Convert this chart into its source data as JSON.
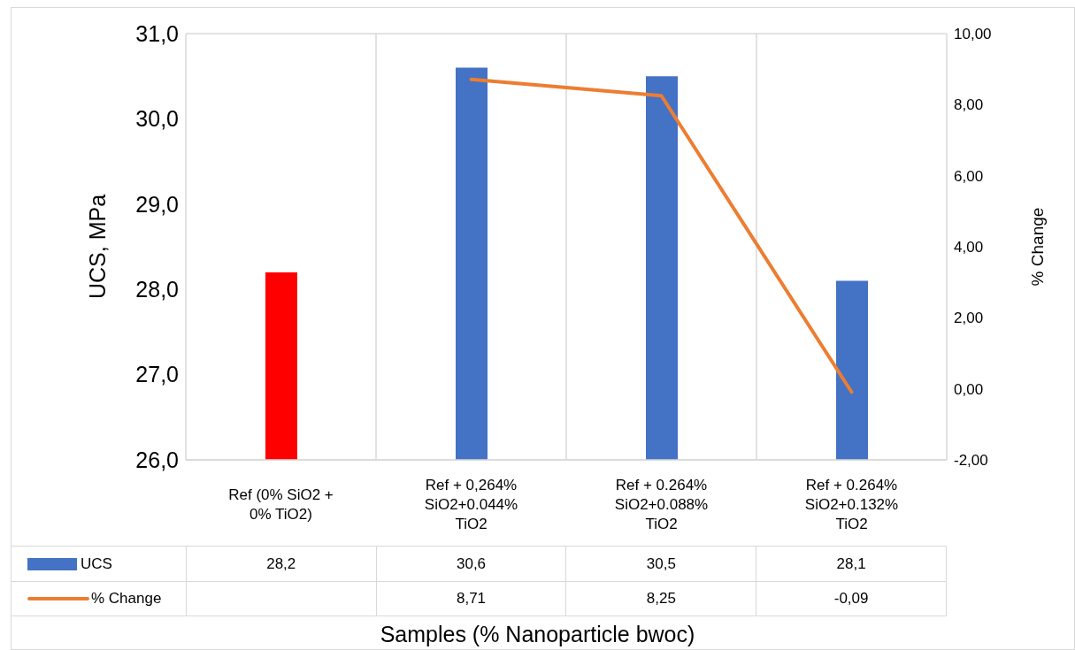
{
  "chart_data": {
    "type": "bar",
    "xlabel": "Samples (% Nanoparticle bwoc)",
    "ylabel": "UCS, MPa",
    "y2label": "% Change",
    "categories": [
      "Ref (0% SiO2 + 0% TiO2)",
      "Ref + 0,264% SiO2+0.044% TiO2",
      "Ref + 0.264% SiO2+0.088% TiO2",
      "Ref + 0.264% SiO2+0.132% TiO2"
    ],
    "series": [
      {
        "name": "UCS",
        "color": "#4472c4",
        "colors": [
          "#ff0000",
          "#4472c4",
          "#4472c4",
          "#4472c4"
        ],
        "values": [
          28.2,
          30.6,
          30.5,
          28.1
        ],
        "value_labels": [
          "28,2",
          "30,6",
          "30,5",
          "28,1"
        ]
      },
      {
        "name": "% Change",
        "type": "line",
        "axis": "y2",
        "color": "#ed7d31",
        "values": [
          null,
          8.71,
          8.25,
          -0.09
        ],
        "value_labels": [
          null,
          "8,71",
          "8,25",
          "-0,09"
        ]
      }
    ],
    "ylim": [
      26,
      31
    ],
    "yticks": [
      {
        "value": 26,
        "label": "26,0"
      },
      {
        "value": 27,
        "label": "27,0"
      },
      {
        "value": 28,
        "label": "28,0"
      },
      {
        "value": 29,
        "label": "29,0"
      },
      {
        "value": 30,
        "label": "30,0"
      },
      {
        "value": 31,
        "label": "31,0"
      }
    ],
    "y2lim": [
      -2,
      10
    ],
    "y2ticks": [
      {
        "value": -2,
        "label": "-2,00"
      },
      {
        "value": 0,
        "label": "0,00"
      },
      {
        "value": 2,
        "label": "2,00"
      },
      {
        "value": 4,
        "label": "4,00"
      },
      {
        "value": 6,
        "label": "6,00"
      },
      {
        "value": 8,
        "label": "8,00"
      },
      {
        "value": 10,
        "label": "10,00"
      }
    ],
    "grid": true,
    "legend": "bottom left",
    "marker": "none",
    "line_style": "solid"
  }
}
